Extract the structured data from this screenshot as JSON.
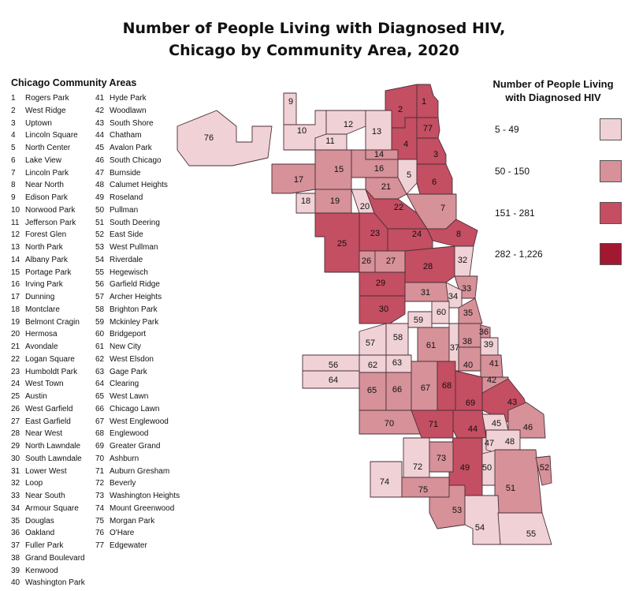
{
  "title_line1": "Number of People Living with Diagnosed HIV,",
  "title_line2": "Chicago by Community Area, 2020",
  "list_title": "Chicago Community Areas",
  "areas": [
    {
      "num": "1",
      "name": "Rogers Park"
    },
    {
      "num": "2",
      "name": "West Ridge"
    },
    {
      "num": "3",
      "name": "Uptown"
    },
    {
      "num": "4",
      "name": "Lincoln Square"
    },
    {
      "num": "5",
      "name": "North Center"
    },
    {
      "num": "6",
      "name": "Lake View"
    },
    {
      "num": "7",
      "name": "Lincoln Park"
    },
    {
      "num": "8",
      "name": "Near North"
    },
    {
      "num": "9",
      "name": "Edison Park"
    },
    {
      "num": "10",
      "name": "Norwood Park"
    },
    {
      "num": "11",
      "name": "Jefferson Park"
    },
    {
      "num": "12",
      "name": "Forest Glen"
    },
    {
      "num": "13",
      "name": "North Park"
    },
    {
      "num": "14",
      "name": "Albany Park"
    },
    {
      "num": "15",
      "name": "Portage Park"
    },
    {
      "num": "16",
      "name": "Irving Park"
    },
    {
      "num": "17",
      "name": "Dunning"
    },
    {
      "num": "18",
      "name": "Montclare"
    },
    {
      "num": "19",
      "name": "Belmont Cragin"
    },
    {
      "num": "20",
      "name": "Hermosa"
    },
    {
      "num": "21",
      "name": "Avondale"
    },
    {
      "num": "22",
      "name": "Logan Square"
    },
    {
      "num": "23",
      "name": "Humboldt Park"
    },
    {
      "num": "24",
      "name": "West Town"
    },
    {
      "num": "25",
      "name": "Austin"
    },
    {
      "num": "26",
      "name": "West Garfield"
    },
    {
      "num": "27",
      "name": "East Garfield"
    },
    {
      "num": "28",
      "name": "Near West"
    },
    {
      "num": "29",
      "name": "North Lawndale"
    },
    {
      "num": "30",
      "name": "South Lawndale"
    },
    {
      "num": "31",
      "name": "Lower West"
    },
    {
      "num": "32",
      "name": "Loop"
    },
    {
      "num": "33",
      "name": "Near South"
    },
    {
      "num": "34",
      "name": "Armour Square"
    },
    {
      "num": "35",
      "name": "Douglas"
    },
    {
      "num": "36",
      "name": "Oakland"
    },
    {
      "num": "37",
      "name": "Fuller Park"
    },
    {
      "num": "38",
      "name": "Grand Boulevard"
    },
    {
      "num": "39",
      "name": "Kenwood"
    },
    {
      "num": "40",
      "name": "Washington Park"
    },
    {
      "num": "41",
      "name": "Hyde Park"
    },
    {
      "num": "42",
      "name": "Woodlawn"
    },
    {
      "num": "43",
      "name": "South Shore"
    },
    {
      "num": "44",
      "name": "Chatham"
    },
    {
      "num": "45",
      "name": "Avalon Park"
    },
    {
      "num": "46",
      "name": "South Chicago"
    },
    {
      "num": "47",
      "name": "Burnside"
    },
    {
      "num": "48",
      "name": "Calumet Heights"
    },
    {
      "num": "49",
      "name": "Roseland"
    },
    {
      "num": "50",
      "name": "Pullman"
    },
    {
      "num": "51",
      "name": "South Deering"
    },
    {
      "num": "52",
      "name": "East Side"
    },
    {
      "num": "53",
      "name": "West Pullman"
    },
    {
      "num": "54",
      "name": "Riverdale"
    },
    {
      "num": "55",
      "name": "Hegewisch"
    },
    {
      "num": "56",
      "name": "Garfield Ridge"
    },
    {
      "num": "57",
      "name": "Archer Heights"
    },
    {
      "num": "58",
      "name": "Brighton Park"
    },
    {
      "num": "59",
      "name": "Mckinley Park"
    },
    {
      "num": "60",
      "name": "Bridgeport"
    },
    {
      "num": "61",
      "name": "New City"
    },
    {
      "num": "62",
      "name": "West Elsdon"
    },
    {
      "num": "63",
      "name": "Gage Park"
    },
    {
      "num": "64",
      "name": "Clearing"
    },
    {
      "num": "65",
      "name": "West Lawn"
    },
    {
      "num": "66",
      "name": "Chicago Lawn"
    },
    {
      "num": "67",
      "name": "West Englewood"
    },
    {
      "num": "68",
      "name": "Englewood"
    },
    {
      "num": "69",
      "name": "Greater Grand"
    },
    {
      "num": "70",
      "name": "Ashburn"
    },
    {
      "num": "71",
      "name": "Auburn Gresham"
    },
    {
      "num": "72",
      "name": "Beverly"
    },
    {
      "num": "73",
      "name": "Washington Heights"
    },
    {
      "num": "74",
      "name": "Mount Greenwood"
    },
    {
      "num": "75",
      "name": "Morgan Park"
    },
    {
      "num": "76",
      "name": "O'Hare"
    },
    {
      "num": "77",
      "name": "Edgewater"
    }
  ],
  "legend": {
    "title_line1": "Number of People Living",
    "title_line2": "with Diagnosed HIV",
    "bins": [
      {
        "label": "5 - 49",
        "color": "#f0d2d6",
        "class": 1
      },
      {
        "label": "50 - 150",
        "color": "#d69199",
        "class": 2
      },
      {
        "label": "151 - 281",
        "color": "#c44e62",
        "class": 3
      },
      {
        "label": "282 - 1,226",
        "color": "#a31831",
        "class": 4
      }
    ]
  },
  "map_classes": {
    "1": 3,
    "2": 3,
    "3": 3,
    "4": 3,
    "5": 1,
    "6": 3,
    "7": 2,
    "8": 3,
    "9": 1,
    "10": 1,
    "11": 1,
    "12": 1,
    "13": 1,
    "14": 2,
    "15": 2,
    "16": 2,
    "17": 2,
    "18": 1,
    "19": 2,
    "20": 1,
    "21": 2,
    "22": 3,
    "23": 3,
    "24": 3,
    "25": 3,
    "26": 2,
    "27": 2,
    "28": 3,
    "29": 3,
    "30": 3,
    "31": 2,
    "32": 1,
    "33": 2,
    "34": 1,
    "35": 2,
    "36": 2,
    "37": 1,
    "38": 2,
    "39": 1,
    "40": 2,
    "41": 2,
    "42": 2,
    "43": 3,
    "44": 3,
    "45": 1,
    "46": 2,
    "47": 1,
    "48": 1,
    "49": 3,
    "50": 1,
    "51": 2,
    "52": 2,
    "53": 2,
    "54": 1,
    "55": 1,
    "56": 1,
    "57": 1,
    "58": 1,
    "59": 1,
    "60": 1,
    "61": 2,
    "62": 1,
    "63": 1,
    "64": 1,
    "65": 2,
    "66": 2,
    "67": 2,
    "68": 3,
    "69": 3,
    "70": 2,
    "71": 3,
    "72": 1,
    "73": 2,
    "74": 1,
    "75": 2,
    "76": 1,
    "77": 3
  }
}
